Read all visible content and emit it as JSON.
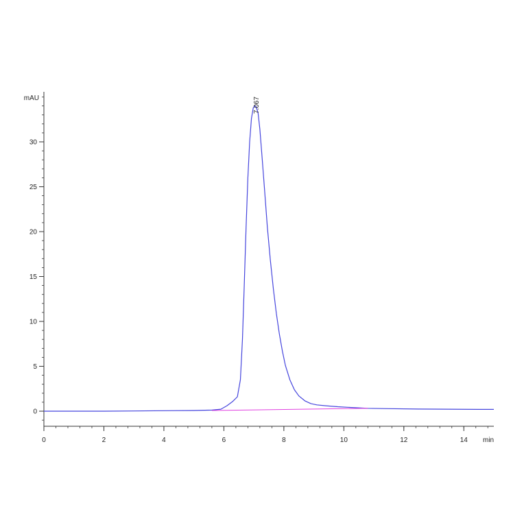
{
  "chart_data": {
    "type": "line",
    "title": "",
    "ylabel": "mAU",
    "xlabel": "min",
    "xlim": [
      0,
      15
    ],
    "ylim": [
      -1.6,
      35.5
    ],
    "x_ticks": [
      0,
      2,
      4,
      6,
      8,
      10,
      12,
      14
    ],
    "x_tick_labels": [
      "0",
      "2",
      "4",
      "6",
      "8",
      "10",
      "12",
      "14"
    ],
    "y_ticks": [
      0,
      5,
      10,
      15,
      20,
      25,
      30
    ],
    "y_tick_labels": [
      "0",
      "5",
      "10",
      "15",
      "20",
      "25",
      "30"
    ],
    "grid": false,
    "peak": {
      "x": 7.067,
      "label": "7.067"
    },
    "series": [
      {
        "color": "#4444dd",
        "x": [
          0,
          1,
          2,
          3,
          4,
          5,
          5.6,
          5.9,
          6.1,
          6.3,
          6.45,
          6.55,
          6.62,
          6.68,
          6.74,
          6.8,
          6.86,
          6.92,
          6.98,
          7.03,
          7.08,
          7.14,
          7.2,
          7.28,
          7.36,
          7.45,
          7.55,
          7.65,
          7.75,
          7.85,
          7.95,
          8.05,
          8.2,
          8.35,
          8.5,
          8.7,
          8.9,
          9.1,
          9.4,
          9.8,
          10.2,
          10.8,
          11.5,
          12.5,
          13.5,
          14.5,
          15
        ],
        "y": [
          0.0,
          0.0,
          0.0,
          0.02,
          0.05,
          0.08,
          0.12,
          0.22,
          0.6,
          1.1,
          1.6,
          3.5,
          8.0,
          14.0,
          20.5,
          26.0,
          30.0,
          32.6,
          33.8,
          34.0,
          33.9,
          33.2,
          31.4,
          28.0,
          24.5,
          20.5,
          16.8,
          13.6,
          10.9,
          8.6,
          6.7,
          5.1,
          3.5,
          2.4,
          1.7,
          1.15,
          0.85,
          0.7,
          0.6,
          0.5,
          0.42,
          0.32,
          0.28,
          0.24,
          0.22,
          0.2,
          0.2
        ]
      },
      {
        "color": "#e040e0",
        "x": [
          5.6,
          10.8
        ],
        "y": [
          0.08,
          0.32
        ]
      }
    ]
  }
}
